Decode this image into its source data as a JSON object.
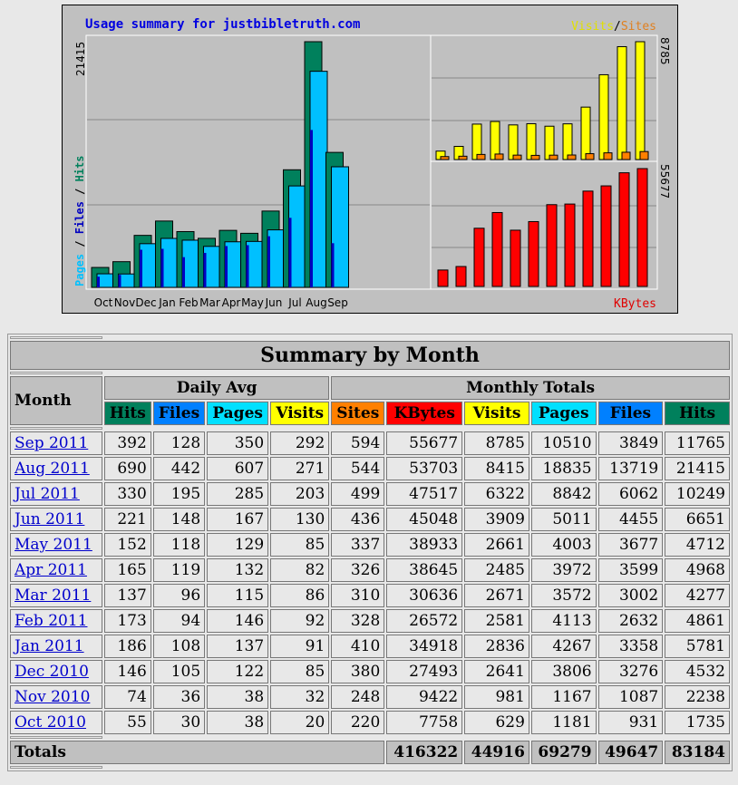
{
  "chart_data": {
    "type": "bar",
    "title": "Usage summary for justbibletruth.com",
    "categories": [
      "Oct",
      "Nov",
      "Dec",
      "Jan",
      "Feb",
      "Mar",
      "Apr",
      "May",
      "Jun",
      "Jul",
      "Aug",
      "Sep"
    ],
    "main_panel": {
      "ylabel": "Pages / Files / Hits",
      "ymax_label": "21415",
      "ymax": 21415,
      "series": [
        {
          "name": "Hits",
          "color": "#00805c",
          "values": [
            1735,
            2238,
            4532,
            5781,
            4861,
            4277,
            4968,
            4712,
            6651,
            10249,
            21415,
            11765
          ]
        },
        {
          "name": "Files",
          "color": "#0000c0",
          "values": [
            931,
            1087,
            3276,
            3358,
            2632,
            3002,
            3599,
            3677,
            4455,
            6062,
            13719,
            3849
          ]
        },
        {
          "name": "Pages",
          "color": "#00c0ff",
          "values": [
            1181,
            1167,
            3806,
            4267,
            4113,
            3572,
            3972,
            4003,
            5011,
            8842,
            18835,
            10510
          ]
        }
      ]
    },
    "visits_panel": {
      "legend_visits": "Visits",
      "legend_sep": "/",
      "legend_sites": "Sites",
      "ymax_label": "8785",
      "ymax": 8785,
      "series": [
        {
          "name": "Visits",
          "color": "#ffff00",
          "values": [
            629,
            981,
            2641,
            2836,
            2581,
            2671,
            2485,
            2661,
            3909,
            6322,
            8415,
            8785
          ]
        },
        {
          "name": "Sites",
          "color": "#ff8000",
          "values": [
            220,
            248,
            380,
            410,
            328,
            310,
            326,
            337,
            436,
            499,
            544,
            594
          ]
        }
      ]
    },
    "kbytes_panel": {
      "label": "KBytes",
      "ymax_label": "55677",
      "ymax": 55677,
      "series": [
        {
          "name": "KBytes",
          "color": "#ff0000",
          "values": [
            7758,
            9422,
            27493,
            34918,
            26572,
            30636,
            38645,
            38933,
            45048,
            47517,
            53703,
            55677
          ]
        }
      ]
    }
  },
  "table": {
    "title": "Summary by Month",
    "month_header": "Month",
    "daily_avg": "Daily Avg",
    "monthly_totals": "Monthly Totals",
    "columns": [
      {
        "label": "Hits",
        "color": "#00805c"
      },
      {
        "label": "Files",
        "color": "#0080ff"
      },
      {
        "label": "Pages",
        "color": "#00e0ff"
      },
      {
        "label": "Visits",
        "color": "#ffff00"
      },
      {
        "label": "Sites",
        "color": "#ff8000"
      },
      {
        "label": "KBytes",
        "color": "#ff0000"
      },
      {
        "label": "Visits",
        "color": "#ffff00"
      },
      {
        "label": "Pages",
        "color": "#00e0ff"
      },
      {
        "label": "Files",
        "color": "#0080ff"
      },
      {
        "label": "Hits",
        "color": "#00805c"
      }
    ],
    "rows": [
      {
        "month": "Sep 2011",
        "values": [
          "392",
          "128",
          "350",
          "292",
          "594",
          "55677",
          "8785",
          "10510",
          "3849",
          "11765"
        ]
      },
      {
        "month": "Aug 2011",
        "values": [
          "690",
          "442",
          "607",
          "271",
          "544",
          "53703",
          "8415",
          "18835",
          "13719",
          "21415"
        ]
      },
      {
        "month": "Jul 2011",
        "values": [
          "330",
          "195",
          "285",
          "203",
          "499",
          "47517",
          "6322",
          "8842",
          "6062",
          "10249"
        ]
      },
      {
        "month": "Jun 2011",
        "values": [
          "221",
          "148",
          "167",
          "130",
          "436",
          "45048",
          "3909",
          "5011",
          "4455",
          "6651"
        ]
      },
      {
        "month": "May 2011",
        "values": [
          "152",
          "118",
          "129",
          "85",
          "337",
          "38933",
          "2661",
          "4003",
          "3677",
          "4712"
        ]
      },
      {
        "month": "Apr 2011",
        "values": [
          "165",
          "119",
          "132",
          "82",
          "326",
          "38645",
          "2485",
          "3972",
          "3599",
          "4968"
        ]
      },
      {
        "month": "Mar 2011",
        "values": [
          "137",
          "96",
          "115",
          "86",
          "310",
          "30636",
          "2671",
          "3572",
          "3002",
          "4277"
        ]
      },
      {
        "month": "Feb 2011",
        "values": [
          "173",
          "94",
          "146",
          "92",
          "328",
          "26572",
          "2581",
          "4113",
          "2632",
          "4861"
        ]
      },
      {
        "month": "Jan 2011",
        "values": [
          "186",
          "108",
          "137",
          "91",
          "410",
          "34918",
          "2836",
          "4267",
          "3358",
          "5781"
        ]
      },
      {
        "month": "Dec 2010",
        "values": [
          "146",
          "105",
          "122",
          "85",
          "380",
          "27493",
          "2641",
          "3806",
          "3276",
          "4532"
        ]
      },
      {
        "month": "Nov 2010",
        "values": [
          "74",
          "36",
          "38",
          "32",
          "248",
          "9422",
          "981",
          "1167",
          "1087",
          "2238"
        ]
      },
      {
        "month": "Oct 2010",
        "values": [
          "55",
          "30",
          "38",
          "20",
          "220",
          "7758",
          "629",
          "1181",
          "931",
          "1735"
        ]
      }
    ],
    "totals": {
      "label": "Totals",
      "values": [
        "416322",
        "44916",
        "69279",
        "49647",
        "83184"
      ]
    }
  }
}
